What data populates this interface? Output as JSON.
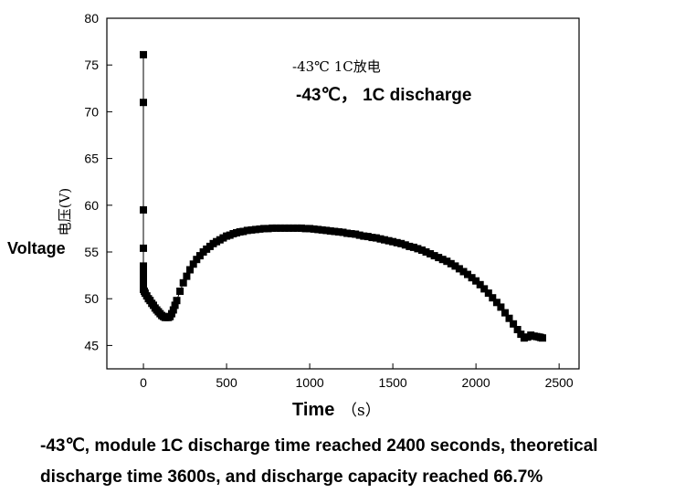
{
  "chart_data": {
    "type": "scatter",
    "annotation_cn": "-43℃ 1C放电",
    "annotation_en": "-43℃， 1C discharge",
    "ylabel_cn": "电压(V)",
    "ylabel_en": "Voltage",
    "xlabel_en": "Time",
    "xlabel_unit": "（s）",
    "xlim": [
      -220,
      2620
    ],
    "ylim": [
      42.5,
      80
    ],
    "x_ticks": [
      0,
      500,
      1000,
      1500,
      2000,
      2500
    ],
    "y_ticks": [
      45,
      50,
      55,
      60,
      65,
      70,
      75,
      80
    ],
    "grid": false,
    "marker": "square",
    "series": [
      {
        "x": [
          0,
          0,
          0,
          0,
          0,
          0,
          0,
          0,
          0,
          0,
          0,
          0,
          5,
          10,
          20,
          30,
          40,
          50,
          60,
          70,
          80,
          90,
          100,
          110,
          120,
          130,
          140,
          150,
          160,
          170,
          180,
          190,
          200,
          220,
          240,
          260,
          280,
          300,
          320,
          340,
          360,
          380,
          400,
          420,
          440,
          460,
          480,
          500,
          520,
          540,
          560,
          580,
          600,
          625,
          650,
          675,
          700,
          725,
          750,
          775,
          800,
          825,
          850,
          875,
          900,
          925,
          950,
          975,
          1000,
          1025,
          1050,
          1075,
          1100,
          1125,
          1150,
          1175,
          1200,
          1225,
          1250,
          1275,
          1300,
          1325,
          1350,
          1375,
          1400,
          1425,
          1450,
          1475,
          1500,
          1525,
          1550,
          1575,
          1600,
          1625,
          1650,
          1675,
          1700,
          1725,
          1750,
          1775,
          1800,
          1825,
          1850,
          1875,
          1900,
          1925,
          1950,
          1975,
          2000,
          2025,
          2050,
          2075,
          2100,
          2125,
          2150,
          2175,
          2200,
          2225,
          2250,
          2270,
          2290,
          2310,
          2330,
          2350,
          2365,
          2380,
          2390,
          2400
        ],
        "y": [
          76.1,
          71.0,
          59.5,
          55.4,
          53.5,
          52.8,
          52.3,
          51.9,
          51.6,
          51.3,
          51.1,
          51.0,
          50.8,
          50.6,
          50.3,
          50.0,
          49.8,
          49.5,
          49.3,
          49.0,
          48.8,
          48.6,
          48.4,
          48.2,
          48.1,
          48.0,
          48.0,
          48.0,
          48.1,
          48.4,
          48.8,
          49.3,
          49.8,
          50.8,
          51.7,
          52.4,
          53.1,
          53.7,
          54.2,
          54.6,
          55.0,
          55.3,
          55.6,
          55.9,
          56.1,
          56.3,
          56.5,
          56.7,
          56.8,
          56.95,
          57.05,
          57.15,
          57.2,
          57.3,
          57.35,
          57.4,
          57.45,
          57.5,
          57.5,
          57.55,
          57.55,
          57.55,
          57.55,
          57.55,
          57.55,
          57.55,
          57.55,
          57.5,
          57.5,
          57.45,
          57.4,
          57.35,
          57.3,
          57.25,
          57.2,
          57.15,
          57.1,
          57.0,
          56.95,
          56.9,
          56.8,
          56.7,
          56.65,
          56.55,
          56.5,
          56.4,
          56.3,
          56.2,
          56.1,
          56.0,
          55.9,
          55.75,
          55.6,
          55.5,
          55.35,
          55.2,
          55.0,
          54.8,
          54.6,
          54.4,
          54.2,
          54.0,
          53.75,
          53.5,
          53.2,
          52.9,
          52.6,
          52.25,
          51.9,
          51.5,
          51.05,
          50.6,
          50.1,
          49.6,
          49.1,
          48.5,
          47.9,
          47.3,
          46.7,
          46.2,
          45.8,
          45.9,
          46.1,
          46.0,
          45.95,
          45.9,
          45.85,
          45.8
        ]
      }
    ]
  },
  "caption": {
    "line1": "-43℃, module 1C discharge time reached 2400 seconds, theoretical",
    "line2": "discharge time 3600s, and discharge capacity reached 66.7%"
  }
}
